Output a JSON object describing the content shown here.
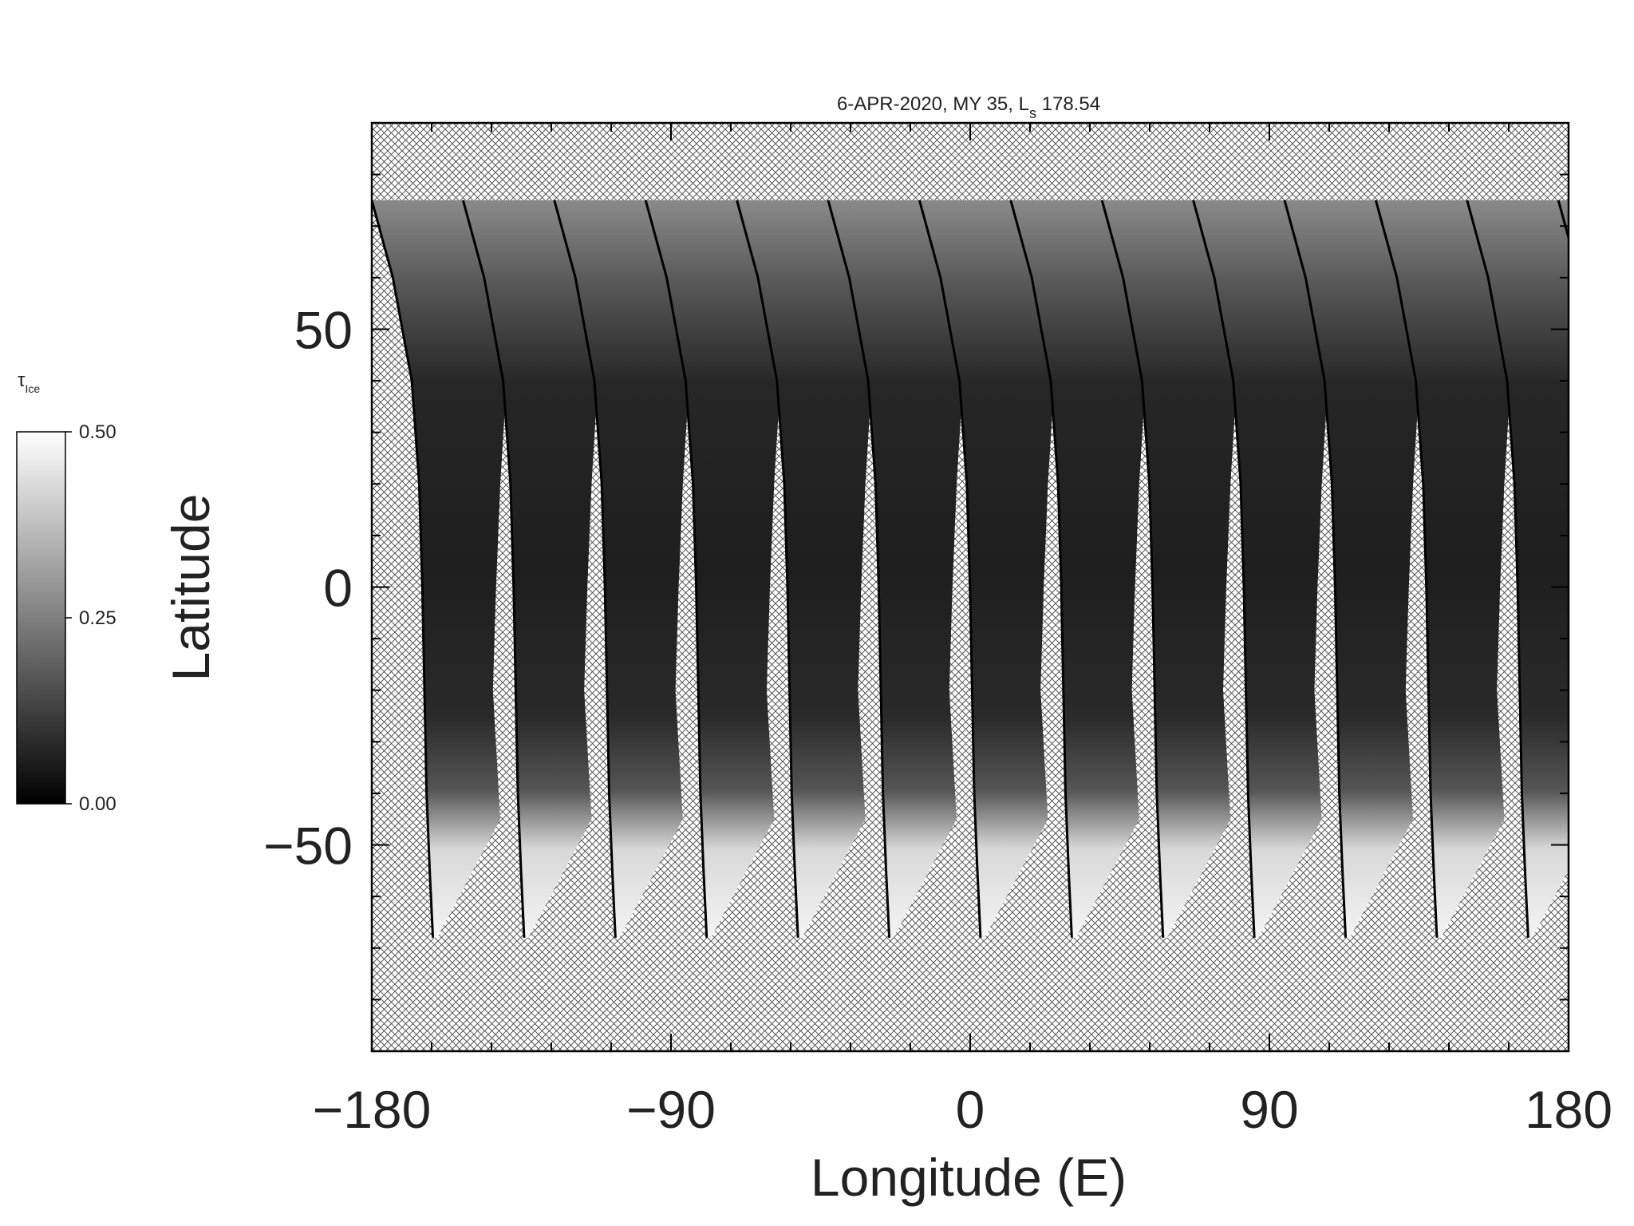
{
  "chart_data": {
    "type": "map",
    "title_parts": [
      "6-APR-2020, MY 35,  L",
      "s",
      " 178.54"
    ],
    "xlabel": "Longitude (E)",
    "ylabel": "Latitude",
    "xlim": [
      -180,
      180
    ],
    "ylim": [
      -90,
      90
    ],
    "xticks": [
      {
        "value": -180,
        "label": "−180"
      },
      {
        "value": -90,
        "label": "−90"
      },
      0,
      90,
      180
    ],
    "yticks": [
      {
        "value": -50,
        "label": "−50"
      },
      0,
      50
    ],
    "xminorticks": [
      -180,
      -162,
      -144,
      -126,
      -108,
      -90,
      -72,
      -54,
      -36,
      -18,
      0,
      18,
      36,
      54,
      72,
      90,
      108,
      126,
      144,
      162,
      180
    ],
    "yminorticks": [
      -90,
      -80,
      -70,
      -60,
      -50,
      -40,
      -30,
      -20,
      -10,
      0,
      10,
      20,
      30,
      40,
      50,
      60,
      70,
      80,
      90
    ],
    "colorbar": {
      "label": "τ",
      "label_sub": "Ice",
      "lim": [
        0,
        0.5
      ],
      "ticks": [
        {
          "value": 0,
          "label": "0.00"
        },
        {
          "value": 0.25,
          "label": "0.25"
        },
        {
          "value": 0.5,
          "label": "0.50"
        }
      ],
      "colors": [
        "#000000",
        "#ffffff"
      ]
    }
  }
}
